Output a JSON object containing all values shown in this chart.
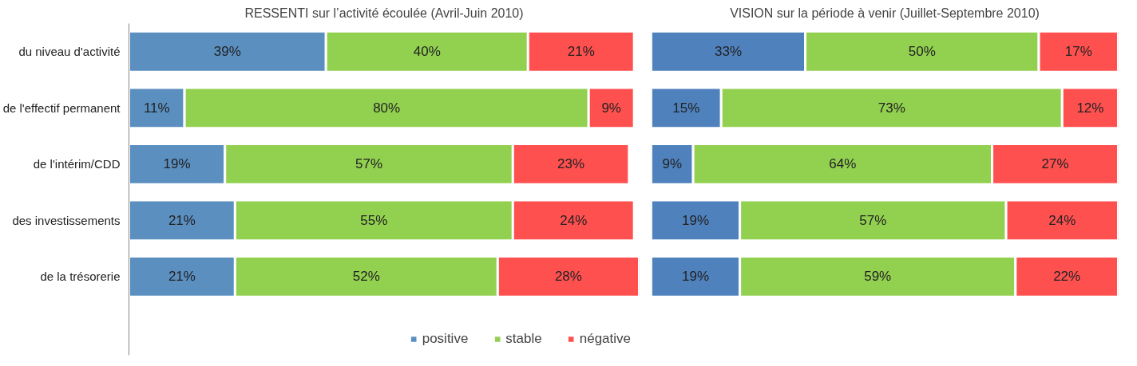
{
  "chart_data": [
    {
      "type": "bar",
      "orientation": "horizontal",
      "stacked": true,
      "tick_labels": "y",
      "legend": "bottom",
      "title": "RESSENTI sur l’activité écoulée (Avril-Juin 2010)",
      "categories": [
        "du niveau d'activité",
        "de l'effectif permanent",
        "de l'intérim/CDD",
        "des investissements",
        "de la trésorerie"
      ],
      "series": [
        {
          "name": "positive",
          "color": "#5a8fc0",
          "values": [
            39,
            11,
            19,
            21,
            21
          ],
          "value_labels": [
            "39%",
            "11%",
            "19%",
            "21%",
            "21%"
          ]
        },
        {
          "name": "stable",
          "color": "#92d050",
          "values": [
            40,
            80,
            57,
            55,
            52
          ],
          "value_labels": [
            "40%",
            "80%",
            "57%",
            "55%",
            "52%"
          ]
        },
        {
          "name": "négative",
          "color": "#ff5050",
          "values": [
            21,
            9,
            23,
            24,
            28
          ],
          "value_labels": [
            "21%",
            "9%",
            "23%",
            "24%",
            "28%"
          ]
        }
      ]
    },
    {
      "type": "bar",
      "orientation": "horizontal",
      "stacked": true,
      "tick_labels": false,
      "title": "VISION sur la période à venir (Juillet-Septembre 2010)",
      "categories": [
        null,
        null,
        null,
        null,
        null
      ],
      "series": [
        {
          "color": "#4f81bd",
          "values": [
            33,
            15,
            9,
            19,
            19
          ],
          "value_labels": [
            "33%",
            "15%",
            "9%",
            "19%",
            "19%"
          ]
        },
        {
          "color": "#92d050",
          "values": [
            50,
            73,
            64,
            57,
            59
          ],
          "value_labels": [
            "50%",
            "73%",
            "64%",
            "57%",
            "59%"
          ]
        },
        {
          "color": "#ff5050",
          "values": [
            17,
            12,
            27,
            24,
            22
          ],
          "value_labels": [
            "17%",
            "12%",
            "27%",
            "24%",
            "22%"
          ]
        }
      ]
    }
  ]
}
